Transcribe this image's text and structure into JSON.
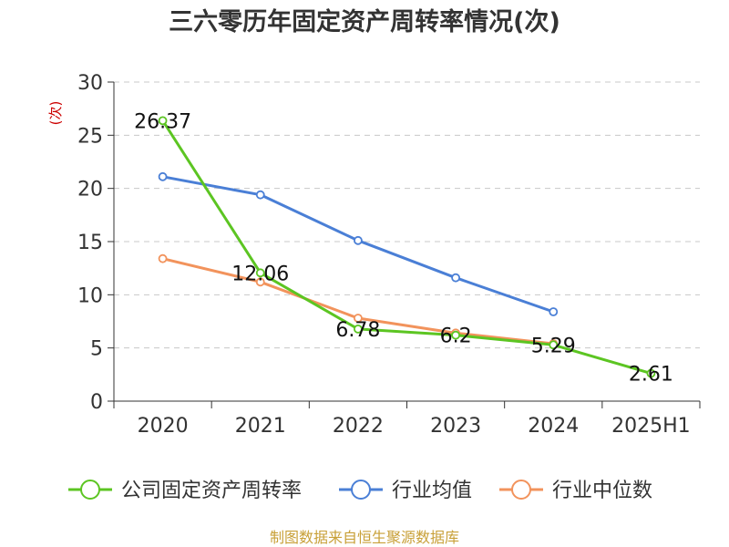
{
  "chart_data": {
    "type": "line",
    "title": "三六零历年固定资产周转率情况(次)",
    "ylabel": "(次)",
    "categories": [
      "2020",
      "2021",
      "2022",
      "2023",
      "2024",
      "2025H1"
    ],
    "ylim": [
      0,
      30
    ],
    "yticks": [
      0,
      5,
      10,
      15,
      20,
      25,
      30
    ],
    "grid": true,
    "legend_position": "bottom",
    "series": [
      {
        "name": "公司固定资产周转率",
        "color": "#5cc522",
        "values": [
          26.37,
          12.06,
          6.78,
          6.2,
          5.29,
          2.61
        ],
        "labels": [
          "26.37",
          "12.06",
          "6.78",
          "6.2",
          "5.29",
          "2.61"
        ]
      },
      {
        "name": "行业均值",
        "color": "#4a7fd6",
        "values": [
          21.1,
          19.4,
          15.1,
          11.6,
          8.4,
          null
        ]
      },
      {
        "name": "行业中位数",
        "color": "#f2935c",
        "values": [
          13.4,
          11.2,
          7.8,
          6.4,
          5.4,
          null
        ]
      }
    ]
  },
  "footer": "制图数据来自恒生聚源数据库"
}
